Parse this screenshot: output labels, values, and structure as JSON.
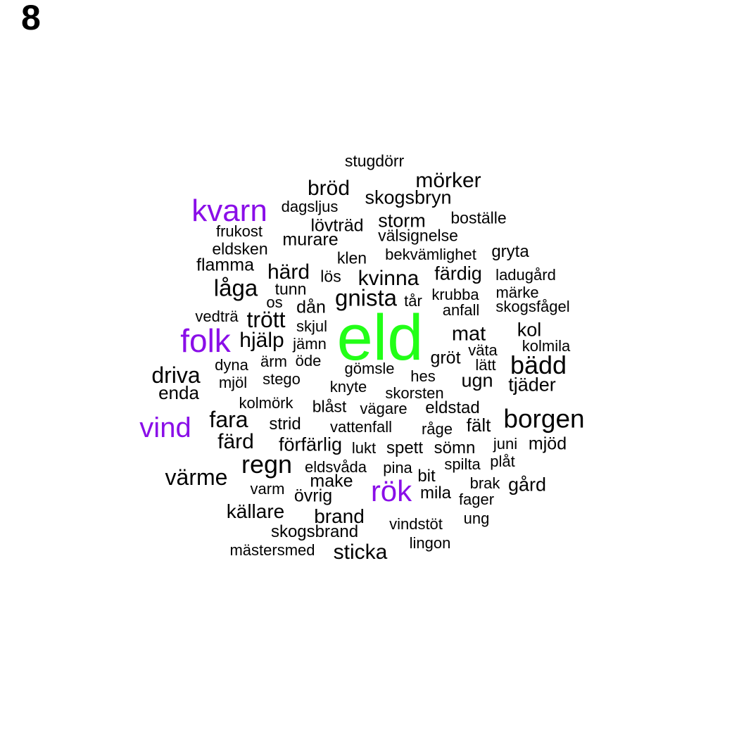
{
  "panel_label": "8",
  "colors": {
    "default": "#000000",
    "highlight": "#8a0ee8",
    "top": "#22ff17"
  },
  "words": [
    {
      "text": "eld",
      "group": "top"
    },
    {
      "text": "kvarn",
      "group": "highlight"
    },
    {
      "text": "folk",
      "group": "highlight"
    },
    {
      "text": "vind",
      "group": "highlight"
    },
    {
      "text": "rök",
      "group": "highlight"
    },
    {
      "text": "stugdörr"
    },
    {
      "text": "mörker"
    },
    {
      "text": "bröd"
    },
    {
      "text": "skogsbryn"
    },
    {
      "text": "dagsljus"
    },
    {
      "text": "storm"
    },
    {
      "text": "boställe"
    },
    {
      "text": "lövträd"
    },
    {
      "text": "frukost"
    },
    {
      "text": "välsignelse"
    },
    {
      "text": "murare"
    },
    {
      "text": "eldsken"
    },
    {
      "text": "klen"
    },
    {
      "text": "bekvämlighet"
    },
    {
      "text": "gryta"
    },
    {
      "text": "flamma"
    },
    {
      "text": "härd"
    },
    {
      "text": "lös"
    },
    {
      "text": "kvinna"
    },
    {
      "text": "färdig"
    },
    {
      "text": "ladugård"
    },
    {
      "text": "låga"
    },
    {
      "text": "tunn"
    },
    {
      "text": "gnista"
    },
    {
      "text": "krubba"
    },
    {
      "text": "märke"
    },
    {
      "text": "os"
    },
    {
      "text": "tår"
    },
    {
      "text": "dån"
    },
    {
      "text": "anfall"
    },
    {
      "text": "skogsfågel"
    },
    {
      "text": "vedträ"
    },
    {
      "text": "trött"
    },
    {
      "text": "skjul"
    },
    {
      "text": "mat"
    },
    {
      "text": "kol"
    },
    {
      "text": "hjälp"
    },
    {
      "text": "jämn"
    },
    {
      "text": "väta"
    },
    {
      "text": "kolmila"
    },
    {
      "text": "gröt"
    },
    {
      "text": "lätt"
    },
    {
      "text": "bädd"
    },
    {
      "text": "dyna"
    },
    {
      "text": "ärm"
    },
    {
      "text": "öde"
    },
    {
      "text": "gömsle"
    },
    {
      "text": "driva"
    },
    {
      "text": "hes"
    },
    {
      "text": "mjöl"
    },
    {
      "text": "stego"
    },
    {
      "text": "ugn"
    },
    {
      "text": "tjäder"
    },
    {
      "text": "knyte"
    },
    {
      "text": "enda"
    },
    {
      "text": "skorsten"
    },
    {
      "text": "kolmörk"
    },
    {
      "text": "blåst"
    },
    {
      "text": "vägare"
    },
    {
      "text": "eldstad"
    },
    {
      "text": "borgen"
    },
    {
      "text": "fara"
    },
    {
      "text": "strid"
    },
    {
      "text": "vattenfall"
    },
    {
      "text": "råge"
    },
    {
      "text": "fält"
    },
    {
      "text": "färd"
    },
    {
      "text": "förfärlig"
    },
    {
      "text": "lukt"
    },
    {
      "text": "spett"
    },
    {
      "text": "sömn"
    },
    {
      "text": "juni"
    },
    {
      "text": "mjöd"
    },
    {
      "text": "regn"
    },
    {
      "text": "plåt"
    },
    {
      "text": "eldsvåda"
    },
    {
      "text": "pina"
    },
    {
      "text": "spilta"
    },
    {
      "text": "värme"
    },
    {
      "text": "make"
    },
    {
      "text": "bit"
    },
    {
      "text": "brak"
    },
    {
      "text": "gård"
    },
    {
      "text": "varm"
    },
    {
      "text": "övrig"
    },
    {
      "text": "mila"
    },
    {
      "text": "fager"
    },
    {
      "text": "källare"
    },
    {
      "text": "brand"
    },
    {
      "text": "vindstöt"
    },
    {
      "text": "ung"
    },
    {
      "text": "skogsbrand"
    },
    {
      "text": "lingon"
    },
    {
      "text": "mästersmed"
    },
    {
      "text": "sticka"
    }
  ]
}
